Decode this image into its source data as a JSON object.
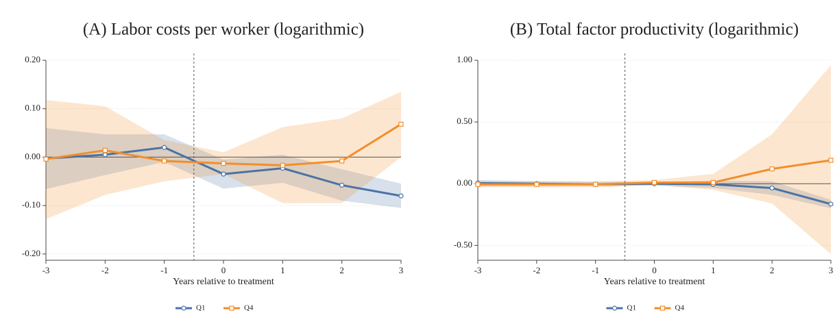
{
  "chart_data": [
    {
      "type": "line",
      "title": "(A) Labor costs per worker (logarithmic)",
      "x_label": "Years relative to treatment",
      "x": [
        -3,
        -2,
        -1,
        0,
        1,
        2,
        3
      ],
      "xlim": [
        -3,
        3
      ],
      "xticks": [
        -3,
        -2,
        -1,
        0,
        1,
        2,
        3
      ],
      "ylim": [
        -0.213,
        0.2
      ],
      "yticks": [
        {
          "value": -0.2,
          "label": "-0.20"
        },
        {
          "value": -0.1,
          "label": "-0.10"
        },
        {
          "value": 0,
          "label": "0.00"
        },
        {
          "value": 0.1,
          "label": "0.10"
        },
        {
          "value": 0.2,
          "label": "0.20"
        }
      ],
      "grid": true,
      "vline": -0.5,
      "hline": 0,
      "legend": "bottom",
      "series": [
        {
          "name": "Q1",
          "color": "#4a72a6",
          "marker": "circle",
          "values": [
            -0.003,
            0.005,
            0.02,
            -0.035,
            -0.023,
            -0.058,
            -0.08
          ],
          "lower": [
            -0.066,
            -0.037,
            -0.01,
            -0.065,
            -0.053,
            -0.09,
            -0.105
          ],
          "upper": [
            0.06,
            0.047,
            0.047,
            -0.005,
            0.005,
            -0.025,
            -0.055
          ]
        },
        {
          "name": "Q4",
          "color": "#f28e2b",
          "marker": "square",
          "values": [
            -0.004,
            0.014,
            -0.008,
            -0.013,
            -0.017,
            -0.008,
            0.068
          ],
          "lower": [
            -0.128,
            -0.078,
            -0.05,
            -0.035,
            -0.095,
            -0.095,
            0.0
          ],
          "upper": [
            0.118,
            0.105,
            0.035,
            0.01,
            0.062,
            0.08,
            0.135
          ]
        }
      ]
    },
    {
      "type": "line",
      "title": "(B) Total factor productivity (logarithmic)",
      "x_label": "Years relative to treatment",
      "x": [
        -3,
        -2,
        -1,
        0,
        1,
        2,
        3
      ],
      "xlim": [
        -3,
        3
      ],
      "xticks": [
        -3,
        -2,
        -1,
        0,
        1,
        2,
        3
      ],
      "ylim": [
        -0.62,
        1.0
      ],
      "yticks": [
        {
          "value": -0.5,
          "label": "-0.50"
        },
        {
          "value": 0,
          "label": "0.00"
        },
        {
          "value": 0.5,
          "label": "0.50"
        },
        {
          "value": 1,
          "label": "1.00"
        }
      ],
      "grid": true,
      "vline": -0.5,
      "hline": 0,
      "legend": "bottom",
      "series": [
        {
          "name": "Q1",
          "color": "#4a72a6",
          "marker": "circle",
          "values": [
            0.005,
            0,
            -0.005,
            0,
            -0.005,
            -0.035,
            -0.165
          ],
          "lower": [
            -0.02,
            -0.02,
            -0.02,
            -0.015,
            -0.035,
            -0.09,
            -0.2
          ],
          "upper": [
            0.03,
            0.02,
            0.015,
            0.015,
            0.025,
            0.02,
            -0.13
          ]
        },
        {
          "name": "Q4",
          "color": "#f28e2b",
          "marker": "square",
          "values": [
            -0.005,
            -0.005,
            -0.005,
            0.01,
            0.01,
            0.12,
            0.19
          ],
          "lower": [
            -0.03,
            -0.03,
            -0.03,
            -0.01,
            -0.05,
            -0.16,
            -0.57
          ],
          "upper": [
            0.02,
            0.02,
            0.02,
            0.03,
            0.08,
            0.4,
            0.96
          ]
        }
      ]
    }
  ]
}
